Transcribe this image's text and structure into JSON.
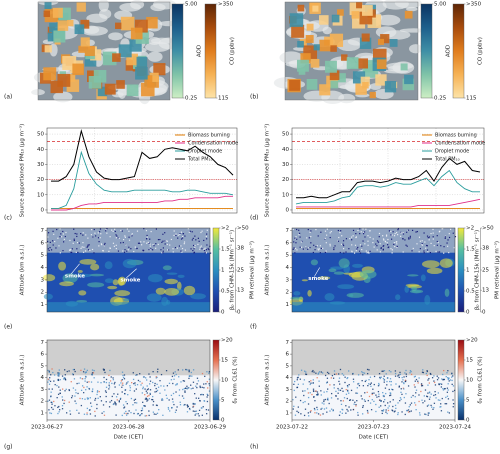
{
  "chart_data": [
    {
      "type": "map",
      "label": "(a)",
      "colorbars": [
        {
          "title": "AOD",
          "lim": [
            0.25,
            5
          ],
          "ticks": [
            {
              "value": 5,
              "label": "5.00"
            },
            0.25
          ],
          "colors": [
            "#cdeec4",
            "#7fc3a8",
            "#3f8fa6",
            "#1d5f8c",
            "#0b3563"
          ]
        },
        {
          "title": "CO (ppbv)",
          "lim": [
            115,
            350
          ],
          "ticks": [
            {
              "value": 350,
              "label": ">350"
            },
            115
          ],
          "colors": [
            "#fde3a8",
            "#f6b255",
            "#e07d1e",
            "#a84c0c",
            "#5e2606"
          ]
        }
      ]
    },
    {
      "type": "map",
      "label": "(b)",
      "colorbars": [
        {
          "title": "AOD",
          "lim": [
            0.25,
            5
          ],
          "ticks": [
            {
              "value": 5,
              "label": "5.00"
            },
            0.25
          ],
          "colors": [
            "#cdeec4",
            "#7fc3a8",
            "#3f8fa6",
            "#1d5f8c",
            "#0b3563"
          ]
        },
        {
          "title": "CO (ppbv)",
          "lim": [
            115,
            350
          ],
          "ticks": [
            {
              "value": 350,
              "label": ">350"
            },
            115
          ],
          "colors": [
            "#fde3a8",
            "#f6b255",
            "#e07d1e",
            "#a84c0c",
            "#5e2606"
          ]
        }
      ]
    },
    {
      "type": "line",
      "label": "(c)",
      "ylabel": "Source apportioned PM₁₀ (μg m⁻³)",
      "categories": [
        null,
        null,
        null,
        null,
        null,
        null,
        null,
        null,
        null,
        null,
        null,
        null,
        null,
        null,
        null,
        null,
        null,
        null,
        null,
        null,
        null,
        null,
        null,
        null,
        null
      ],
      "ylim": [
        -2,
        54
      ],
      "yticks": [
        0,
        10,
        20,
        30,
        40,
        50
      ],
      "grid": true,
      "legend": "upper right",
      "hlines": [
        {
          "value": 45,
          "color": "#d62728",
          "style": "dashed"
        },
        {
          "value": 20,
          "color": "#d62728",
          "style": "dotted"
        }
      ],
      "series": [
        {
          "name": "Biomass burning",
          "color": "#e07b00",
          "values": [
            1,
            1,
            1,
            1,
            1,
            1,
            1,
            1,
            1,
            1,
            1,
            1,
            1,
            1,
            1,
            1,
            1,
            1,
            1,
            1,
            1,
            1,
            1,
            1,
            1
          ]
        },
        {
          "name": "Condensation mode",
          "color": "#e0308a",
          "values": [
            0,
            0,
            0,
            1,
            3,
            4,
            4,
            5,
            5,
            5,
            5,
            5,
            5,
            5,
            5,
            6,
            6,
            7,
            7,
            8,
            8,
            8,
            8,
            9,
            9
          ]
        },
        {
          "name": "Droplet mode",
          "color": "#2a9d9d",
          "values": [
            1,
            1,
            3,
            14,
            38,
            24,
            17,
            13,
            12,
            12,
            12,
            13,
            13,
            13,
            13,
            13,
            12,
            12,
            13,
            13,
            12,
            11,
            11,
            11,
            10
          ]
        },
        {
          "name": "Total PM₁₀",
          "color": "#000000",
          "values": [
            19,
            19,
            22,
            30,
            52,
            35,
            25,
            21,
            20,
            20,
            21,
            22,
            38,
            34,
            35,
            40,
            41,
            40,
            39,
            42,
            38,
            35,
            30,
            28,
            23
          ]
        }
      ]
    },
    {
      "type": "line",
      "label": "(d)",
      "ylabel": "Source apportioned PM₁₀ (μg m⁻³)",
      "categories": [
        null,
        null,
        null,
        null,
        null,
        null,
        null,
        null,
        null,
        null,
        null,
        null,
        null,
        null,
        null,
        null,
        null,
        null,
        null,
        null,
        null,
        null,
        null,
        null,
        null
      ],
      "ylim": [
        -2,
        54
      ],
      "yticks": [
        0,
        10,
        20,
        30,
        40,
        50
      ],
      "grid": true,
      "legend": "upper right",
      "hlines": [
        {
          "value": 45,
          "color": "#d62728",
          "style": "dashed"
        },
        {
          "value": 20,
          "color": "#d62728",
          "style": "dotted"
        }
      ],
      "series": [
        {
          "name": "Biomass burning",
          "color": "#e07b00",
          "values": [
            1,
            1,
            1,
            1,
            1,
            1,
            1,
            1,
            1,
            1,
            1,
            1,
            1,
            1,
            1,
            1,
            1,
            1,
            1,
            1,
            1,
            1,
            1,
            1,
            1
          ]
        },
        {
          "name": "Condensation mode",
          "color": "#e0308a",
          "values": [
            2,
            2,
            2,
            2,
            2,
            2,
            2,
            2,
            2,
            2,
            2,
            2,
            2,
            2,
            2,
            2,
            3,
            3,
            3,
            3,
            3,
            4,
            5,
            6,
            7
          ]
        },
        {
          "name": "Droplet mode",
          "color": "#2a9d9d",
          "values": [
            4,
            5,
            5,
            5,
            5,
            6,
            8,
            9,
            15,
            16,
            16,
            15,
            16,
            18,
            17,
            17,
            19,
            21,
            16,
            22,
            26,
            18,
            14,
            12,
            12
          ]
        },
        {
          "name": "Total PM₁₀",
          "color": "#000000",
          "values": [
            8,
            8,
            9,
            8,
            8,
            10,
            12,
            12,
            18,
            19,
            19,
            18,
            19,
            21,
            20,
            20,
            22,
            26,
            19,
            28,
            34,
            30,
            32,
            26,
            25
          ]
        }
      ]
    },
    {
      "type": "heatmap",
      "label": "(e)",
      "ylabel": "Altitude (km a.s.l.)",
      "ylim": [
        0.4,
        7.2
      ],
      "yticks": [
        1,
        2,
        3,
        4,
        5,
        6,
        7
      ],
      "annotations": [
        "smoke",
        "smoke"
      ],
      "colorbar": {
        "title": "βₚ from CHM-15k (Mm⁻¹ sr⁻¹)",
        "lim": [
          0,
          2
        ],
        "ticks": [
          {
            "value": 2,
            "label": ">2"
          },
          1.5,
          1,
          0.5,
          0
        ],
        "title2": "PM retrieval (μg m⁻³)",
        "lim2": [
          0,
          50
        ],
        "ticks2": [
          {
            "value": 50,
            "label": ">50"
          },
          38,
          25,
          13,
          0
        ],
        "colors": [
          "#1a1f7a",
          "#1f4fb0",
          "#2b8fc0",
          "#58c0a0",
          "#f2e83a"
        ]
      }
    },
    {
      "type": "heatmap",
      "label": "(f)",
      "ylabel": "Altitude (km a.s.l.)",
      "ylim": [
        0.4,
        7.2
      ],
      "yticks": [
        1,
        2,
        3,
        4,
        5,
        6,
        7
      ],
      "annotations": [
        "smoke"
      ],
      "colorbar": {
        "title": "βₚ from CHM-15k (Mm⁻¹ sr⁻¹)",
        "lim": [
          0,
          2
        ],
        "ticks": [
          {
            "value": 2,
            "label": ">2"
          },
          1.5,
          1,
          0.5,
          0
        ],
        "title2": "PM retrieval (μg m⁻³)",
        "lim2": [
          0,
          50
        ],
        "ticks2": [
          {
            "value": 50,
            "label": ">50"
          },
          38,
          25,
          13,
          0
        ],
        "colors": [
          "#1a1f7a",
          "#1f4fb0",
          "#2b8fc0",
          "#58c0a0",
          "#f2e83a"
        ]
      }
    },
    {
      "type": "heatmap",
      "label": "(g)",
      "ylabel": "Altitude (km a.s.l.)",
      "ylim": [
        0.4,
        7.2
      ],
      "yticks": [
        1,
        2,
        3,
        4,
        5,
        6,
        7
      ],
      "xlabel": "Date (CET)",
      "xticks": [
        "2023-06-27",
        "2023-06-28",
        "2023-06-29"
      ],
      "colorbar": {
        "title": "δₚ from CL61 (%)",
        "lim": [
          0,
          20
        ],
        "ticks": [
          {
            "value": 20,
            "label": ">20"
          },
          15,
          10,
          5,
          0
        ],
        "colors": [
          "#08306b",
          "#4a90c8",
          "#f7f7f7",
          "#e57050",
          "#9a0c12"
        ]
      }
    },
    {
      "type": "heatmap",
      "label": "(h)",
      "ylabel": "Altitude (km a.s.l.)",
      "ylim": [
        0.4,
        7.2
      ],
      "yticks": [
        1,
        2,
        3,
        4,
        5,
        6,
        7
      ],
      "xlabel": "Date (CET)",
      "xticks": [
        "2023-07-22",
        "2023-07-23",
        "2023-07-24"
      ],
      "colorbar": {
        "title": "δₚ from CL61 (%)",
        "lim": [
          0,
          20
        ],
        "ticks": [
          {
            "value": 20,
            "label": ">20"
          },
          15,
          10,
          5,
          0
        ],
        "colors": [
          "#08306b",
          "#4a90c8",
          "#f7f7f7",
          "#e57050",
          "#9a0c12"
        ]
      }
    }
  ]
}
